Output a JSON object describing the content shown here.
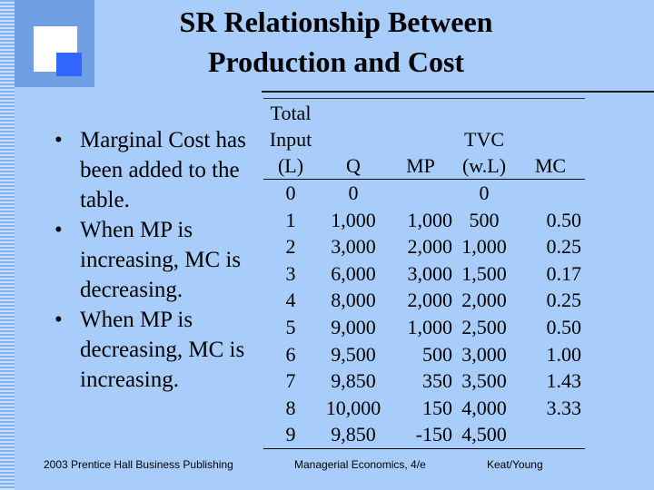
{
  "title": {
    "line1": "SR Relationship Between",
    "line2": "Production and Cost"
  },
  "bullets": [
    {
      "symbol": "•",
      "text": "Marginal Cost has been added to the table."
    },
    {
      "symbol": "•",
      "text": "When MP is increasing, MC is decreasing."
    },
    {
      "symbol": "•",
      "text": "When MP is decreasing, MC is increasing."
    }
  ],
  "table": {
    "headers": {
      "input": [
        "Total",
        "Input",
        "(L)"
      ],
      "q": "Q",
      "mp": "MP",
      "tvc": [
        "TVC",
        "(w.L)"
      ],
      "mc": "MC"
    },
    "rows": [
      [
        "0",
        "0",
        "",
        "0",
        ""
      ],
      [
        "1",
        "1,000",
        "1,000",
        "500",
        "0.50"
      ],
      [
        "2",
        "3,000",
        "2,000",
        "1,000",
        "0.25"
      ],
      [
        "3",
        "6,000",
        "3,000",
        "1,500",
        "0.17"
      ],
      [
        "4",
        "8,000",
        "2,000",
        "2,000",
        "0.25"
      ],
      [
        "5",
        "9,000",
        "1,000",
        "2,500",
        "0.50"
      ],
      [
        "6",
        "9,500",
        "500",
        "3,000",
        "1.00"
      ],
      [
        "7",
        "9,850",
        "350",
        "3,500",
        "1.43"
      ],
      [
        "8",
        "10,000",
        "150",
        "4,000",
        "3.33"
      ],
      [
        "9",
        "9,850",
        "-150",
        "4,500",
        ""
      ]
    ]
  },
  "footer": {
    "left": "2003 Prentice Hall Business Publishing",
    "middle": "Managerial Economics, 4/e",
    "right": "Keat/Young"
  },
  "colors": {
    "background": "#a9cdfb",
    "logo_frame": "#6f9fe2",
    "logo_accent": "#3366ff"
  }
}
